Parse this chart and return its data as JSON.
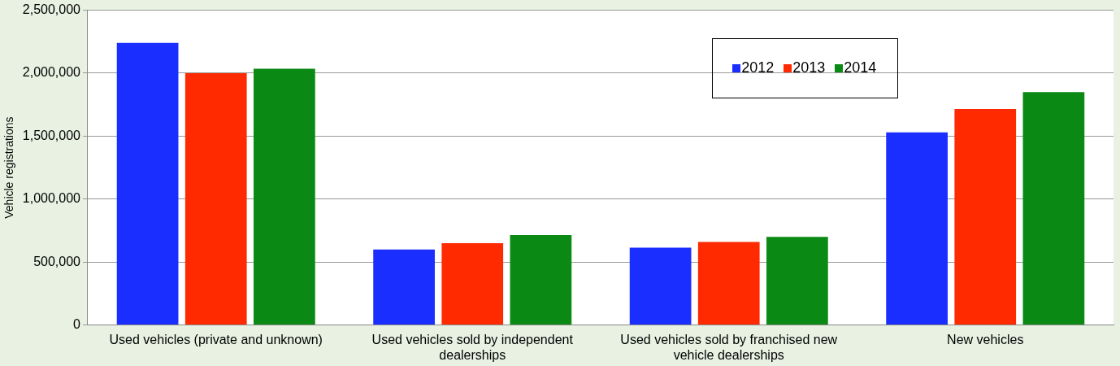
{
  "chart_data": {
    "type": "bar",
    "ylabel": "Vehicle registrations",
    "categories": [
      "Used vehicles (private and unknown)",
      "Used vehicles sold by independent dealerships",
      "Used vehicles sold by franchised new vehicle dealerships",
      "New vehicles"
    ],
    "series": [
      {
        "name": "2012",
        "color": "#1a2eff",
        "values": [
          2240000,
          600000,
          615000,
          1530000
        ]
      },
      {
        "name": "2013",
        "color": "#ff2a00",
        "values": [
          2000000,
          650000,
          660000,
          1715000
        ]
      },
      {
        "name": "2014",
        "color": "#0a8a14",
        "values": [
          2035000,
          715000,
          700000,
          1850000
        ]
      }
    ],
    "ylim": [
      0,
      2500000
    ],
    "yticks": [
      {
        "value": 0,
        "label": "0"
      },
      {
        "value": 500000,
        "label": "500,000"
      },
      {
        "value": 1000000,
        "label": "1,000,000"
      },
      {
        "value": 1500000,
        "label": "1,500,000"
      },
      {
        "value": 2000000,
        "label": "2,000,000"
      },
      {
        "value": 2500000,
        "label": "2,500,000"
      }
    ],
    "grid": "y",
    "legend": "top right"
  }
}
